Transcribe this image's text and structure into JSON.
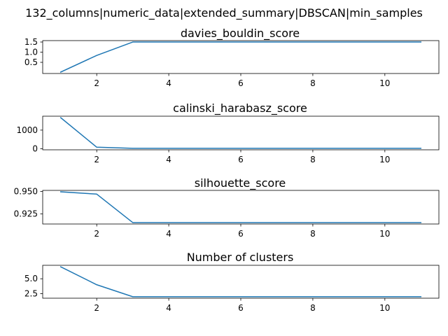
{
  "figure": {
    "suptitle": "132_columns|numeric_data|extended_summary|DBSCAN|min_samples"
  },
  "colors": {
    "line": "#1f77b4",
    "axis": "#000000",
    "background": "#ffffff"
  },
  "chart_data": [
    {
      "type": "line",
      "title": "davies_bouldin_score",
      "xlabel": "",
      "ylabel": "",
      "x": [
        1,
        2,
        3,
        4,
        5,
        6,
        7,
        8,
        9,
        10,
        11
      ],
      "series": [
        {
          "values": [
            0.02,
            0.84,
            1.5,
            1.5,
            1.5,
            1.5,
            1.5,
            1.5,
            1.5,
            1.5,
            1.5
          ]
        }
      ],
      "xlim": [
        0.5,
        11.5
      ],
      "ylim": [
        -0.05,
        1.57
      ],
      "xticks": [
        2,
        4,
        6,
        8,
        10
      ],
      "xtick_labels": [
        "2",
        "4",
        "6",
        "8",
        "10"
      ],
      "yticks": [
        0.5,
        1.0,
        1.5
      ],
      "ytick_labels": [
        "0.5",
        "1.0",
        "1.5"
      ],
      "grid": false,
      "legend": "none"
    },
    {
      "type": "line",
      "title": "calinski_harabasz_score",
      "xlabel": "",
      "ylabel": "",
      "x": [
        1,
        2,
        3,
        4,
        5,
        6,
        7,
        8,
        9,
        10,
        11
      ],
      "series": [
        {
          "values": [
            1670,
            80,
            22,
            22,
            22,
            22,
            22,
            22,
            22,
            22,
            22
          ]
        }
      ],
      "xlim": [
        0.5,
        11.5
      ],
      "ylim": [
        -60,
        1750
      ],
      "xticks": [
        2,
        4,
        6,
        8,
        10
      ],
      "xtick_labels": [
        "2",
        "4",
        "6",
        "8",
        "10"
      ],
      "yticks": [
        0,
        1000
      ],
      "ytick_labels": [
        "0",
        "1000"
      ],
      "grid": false,
      "legend": "none"
    },
    {
      "type": "line",
      "title": "silhouette_score",
      "xlabel": "",
      "ylabel": "",
      "x": [
        1,
        2,
        3,
        4,
        5,
        6,
        7,
        8,
        9,
        10,
        11
      ],
      "series": [
        {
          "values": [
            0.9495,
            0.947,
            0.9155,
            0.9155,
            0.9155,
            0.9155,
            0.9155,
            0.9155,
            0.9155,
            0.9155,
            0.9155
          ]
        }
      ],
      "xlim": [
        0.5,
        11.5
      ],
      "ylim": [
        0.9139,
        0.9511
      ],
      "xticks": [
        2,
        4,
        6,
        8,
        10
      ],
      "xtick_labels": [
        "2",
        "4",
        "6",
        "8",
        "10"
      ],
      "yticks": [
        0.925,
        0.95
      ],
      "ytick_labels": [
        "0.925",
        "0.950"
      ],
      "grid": false,
      "legend": "none"
    },
    {
      "type": "line",
      "title": "Number of clusters",
      "xlabel": "",
      "ylabel": "",
      "x": [
        1,
        2,
        3,
        4,
        5,
        6,
        7,
        8,
        9,
        10,
        11
      ],
      "series": [
        {
          "values": [
            7,
            4,
            2,
            2,
            2,
            2,
            2,
            2,
            2,
            2,
            2
          ]
        }
      ],
      "xlim": [
        0.5,
        11.5
      ],
      "ylim": [
        1.75,
        7.25
      ],
      "xticks": [
        2,
        4,
        6,
        8,
        10
      ],
      "xtick_labels": [
        "2",
        "4",
        "6",
        "8",
        "10"
      ],
      "yticks": [
        2.5,
        5.0
      ],
      "ytick_labels": [
        "2.5",
        "5.0"
      ],
      "grid": false,
      "legend": "none"
    }
  ]
}
